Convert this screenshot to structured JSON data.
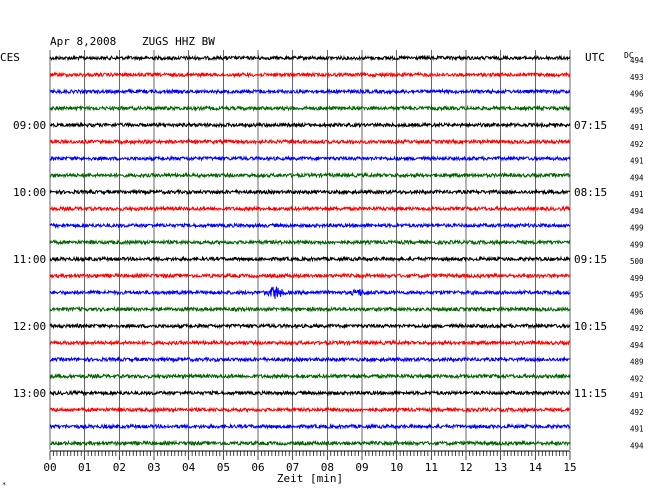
{
  "header": {
    "date": "Apr 8,2008",
    "station": "ZUGS HHZ BW",
    "left_tz": "CES",
    "right_tz": "UTC",
    "dc_label": "DC"
  },
  "chart_data": {
    "type": "line",
    "title": "Apr 8,2008  ZUGS HHZ BW",
    "xlabel": "Zeit [min]",
    "xlim": [
      0,
      15
    ],
    "x_ticks": [
      "00",
      "01",
      "02",
      "03",
      "04",
      "05",
      "06",
      "07",
      "08",
      "09",
      "10",
      "11",
      "12",
      "13",
      "14",
      "15"
    ],
    "grid": true,
    "trace_colors": [
      "#000000",
      "#ff0000",
      "#0000ff",
      "#006400"
    ],
    "left_hour_labels": [
      {
        "trace": 4,
        "label": "09:00"
      },
      {
        "trace": 8,
        "label": "10:00"
      },
      {
        "trace": 12,
        "label": "11:00"
      },
      {
        "trace": 16,
        "label": "12:00"
      },
      {
        "trace": 20,
        "label": "13:00"
      }
    ],
    "right_hour_labels": [
      {
        "trace": 0,
        "label": "UTC"
      },
      {
        "trace": 4,
        "label": "07:15"
      },
      {
        "trace": 8,
        "label": "08:15"
      },
      {
        "trace": 12,
        "label": "09:15"
      },
      {
        "trace": 16,
        "label": "10:15"
      },
      {
        "trace": 20,
        "label": "11:15"
      }
    ],
    "dc_offsets": [
      494,
      493,
      496,
      495,
      491,
      492,
      491,
      494,
      491,
      494,
      499,
      499,
      500,
      499,
      495,
      496,
      492,
      494,
      489,
      492,
      491,
      492,
      491,
      494
    ],
    "events": [
      {
        "trace": 14,
        "minute": 6.5,
        "amplitude": "large"
      },
      {
        "trace": 14,
        "minute": 8.9,
        "amplitude": "small"
      }
    ]
  }
}
